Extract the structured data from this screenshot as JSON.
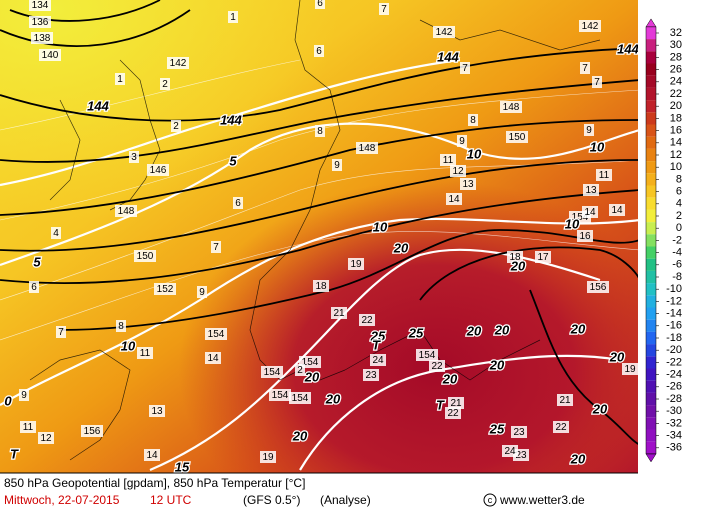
{
  "footer": {
    "title": "850 hPa Geopotential [gpdam], 850 hPa Temperatur [°C]",
    "date": "Mittwoch, 22-07-2015",
    "time": "12 UTC",
    "model": "(GFS 0.5°)",
    "run": "(Analyse)",
    "credit": "www.wetter3.de"
  },
  "legend": {
    "levels": [
      32,
      30,
      28,
      26,
      24,
      22,
      20,
      18,
      16,
      14,
      12,
      10,
      8,
      6,
      4,
      2,
      0,
      -2,
      -4,
      -6,
      -8,
      -10,
      -12,
      -14,
      -16,
      -18,
      -20,
      -22,
      -24,
      -26,
      -28,
      -30,
      -32,
      -34,
      -36
    ],
    "colors": [
      "#e33ad7",
      "#c8207e",
      "#a8003c",
      "#98001e",
      "#a40a28",
      "#b2142c",
      "#c0222a",
      "#cc3a1c",
      "#d85418",
      "#e06a12",
      "#e88212",
      "#ef9a14",
      "#f4b01c",
      "#f7c624",
      "#f8dc30",
      "#f2ee3c",
      "#c8ee50",
      "#84e060",
      "#44d066",
      "#22c084",
      "#22c0a4",
      "#22c0c4",
      "#22b0e0",
      "#22a0f0",
      "#2284f0",
      "#2266f0",
      "#2446e0",
      "#3024d0",
      "#4014c0",
      "#5010b2",
      "#6010a8",
      "#7010a8",
      "#8010b4",
      "#9010c0",
      "#a010c8"
    ]
  },
  "map": {
    "labels": [
      "134",
      "136",
      "138",
      "140",
      "142",
      "142",
      "142",
      "146",
      "148",
      "150",
      "152",
      "154",
      "148",
      "150",
      "148",
      "154",
      "156",
      "156",
      "154",
      "154",
      "154",
      "154",
      "154",
      "2",
      "1",
      "1",
      "2",
      "2",
      "3",
      "4",
      "6",
      "7",
      "8",
      "9",
      "11",
      "14",
      "13",
      "12",
      "11",
      "14",
      "19",
      "6",
      "7",
      "9",
      "18",
      "19",
      "21",
      "22",
      "24",
      "23",
      "22",
      "21",
      "22",
      "23",
      "23",
      "24",
      "22",
      "21",
      "19",
      "17",
      "18",
      "16",
      "13",
      "14",
      "12",
      "11",
      "13",
      "14",
      "14",
      "11",
      "9",
      "9",
      "8",
      "7",
      "7",
      "7",
      "6",
      "6",
      "7",
      "9",
      "8"
    ],
    "bold_labels": [
      "144",
      "144",
      "144",
      "144",
      "5",
      "5",
      "10",
      "10",
      "10",
      "10",
      "10",
      "15",
      "20",
      "20",
      "20",
      "20",
      "20",
      "20",
      "20",
      "20",
      "20",
      "20",
      "20",
      "20",
      "25",
      "25",
      "25",
      "20",
      "0"
    ],
    "markers": [
      "T",
      "T",
      "T"
    ]
  }
}
